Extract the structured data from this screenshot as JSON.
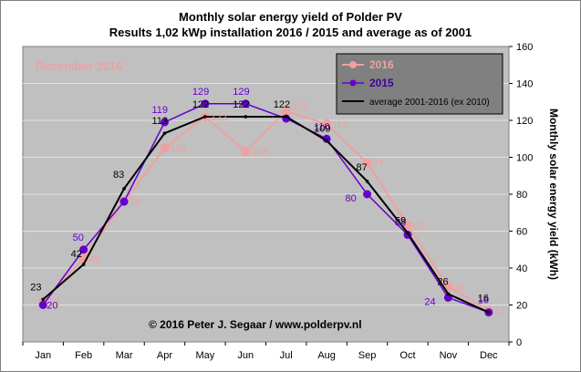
{
  "chart_data": {
    "type": "line",
    "title": "Monthly  solar energy yield of Polder PV",
    "subtitle": "Results  1,02 kWp installation  2016 / 2015 and average as of 2001",
    "annotation": "December 2016",
    "credit": "© 2016 Peter J. Segaar / www.polderpv.nl",
    "ylabel": "Monthly solar energy yield (kWh)",
    "ylabel_side": "right",
    "ylim": [
      0,
      160
    ],
    "y_ticks": [
      "0",
      "20",
      "40",
      "60",
      "80",
      "100",
      "120",
      "140",
      "160"
    ],
    "categories": [
      "Jan",
      "Feb",
      "Mar",
      "Apr",
      "May",
      "Jun",
      "Jul",
      "Aug",
      "Sep",
      "Oct",
      "Nov",
      "Dec"
    ],
    "grid": "horizontal",
    "legend_position": "top-right",
    "series": [
      {
        "name": "2016",
        "color": "#f0a0a0",
        "label_color": "#f0a0a0",
        "values": [
          22,
          45,
          76,
          105,
          122,
          103,
          125,
          118,
          97,
          63,
          30,
          17
        ],
        "labels": [
          "22",
          "45",
          "76",
          "105",
          "122",
          "103",
          "125",
          "118",
          "97",
          "63",
          "30",
          "17"
        ]
      },
      {
        "name": "2015",
        "color": "#6600cc",
        "label_color": "#6600cc",
        "values": [
          20,
          50,
          76,
          119,
          129,
          129,
          121,
          110,
          80,
          58,
          24,
          16
        ],
        "labels": [
          "20",
          "50",
          "",
          "119",
          "129",
          "129",
          "",
          "110",
          "80",
          "58",
          "24",
          "16"
        ]
      },
      {
        "name": "average 2001-2016 (ex 2010)",
        "color": "#000000",
        "label_color": "#000000",
        "values": [
          23,
          42,
          83,
          113,
          122,
          122,
          122,
          109,
          87,
          59,
          26,
          16
        ],
        "labels": [
          "23",
          "42",
          "83",
          "113",
          "122",
          "122",
          "122",
          "109",
          "87",
          "59",
          "26",
          "16"
        ]
      }
    ],
    "colors": {
      "plot_bg": "#c0c0c0",
      "legend_bg": "#808080",
      "annotation": "#f0a0a0"
    }
  }
}
